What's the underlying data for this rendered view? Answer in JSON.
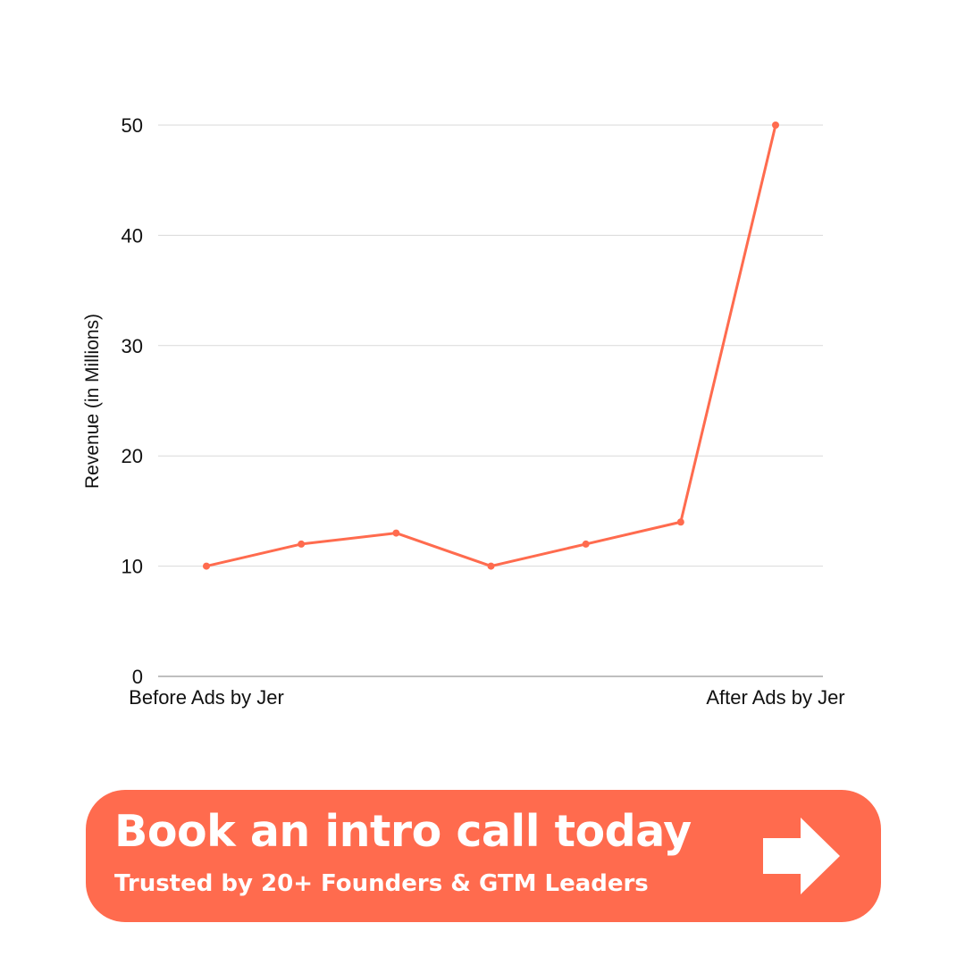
{
  "chart_data": {
    "type": "line",
    "ylabel": "Revenue (in Millions)",
    "xlabel": "",
    "ylim": [
      0,
      50
    ],
    "yticks": [
      0,
      10,
      20,
      30,
      40,
      50
    ],
    "grid": true,
    "categories": [
      "Before Ads by Jer",
      "",
      "",
      "",
      "",
      "",
      "After Ads by Jer"
    ],
    "series": [
      {
        "values": [
          10,
          12,
          13,
          10,
          12,
          14,
          50
        ]
      }
    ],
    "colors": {
      "line": "#FF6B4E",
      "grid": "#D9D9D9",
      "axis": "#999999"
    }
  },
  "cta": {
    "title": "Book an intro call today",
    "subtitle": "Trusted by 20+ Founders & GTM Leaders",
    "icon": "arrow-right-icon",
    "color": "#FF6B4E"
  }
}
